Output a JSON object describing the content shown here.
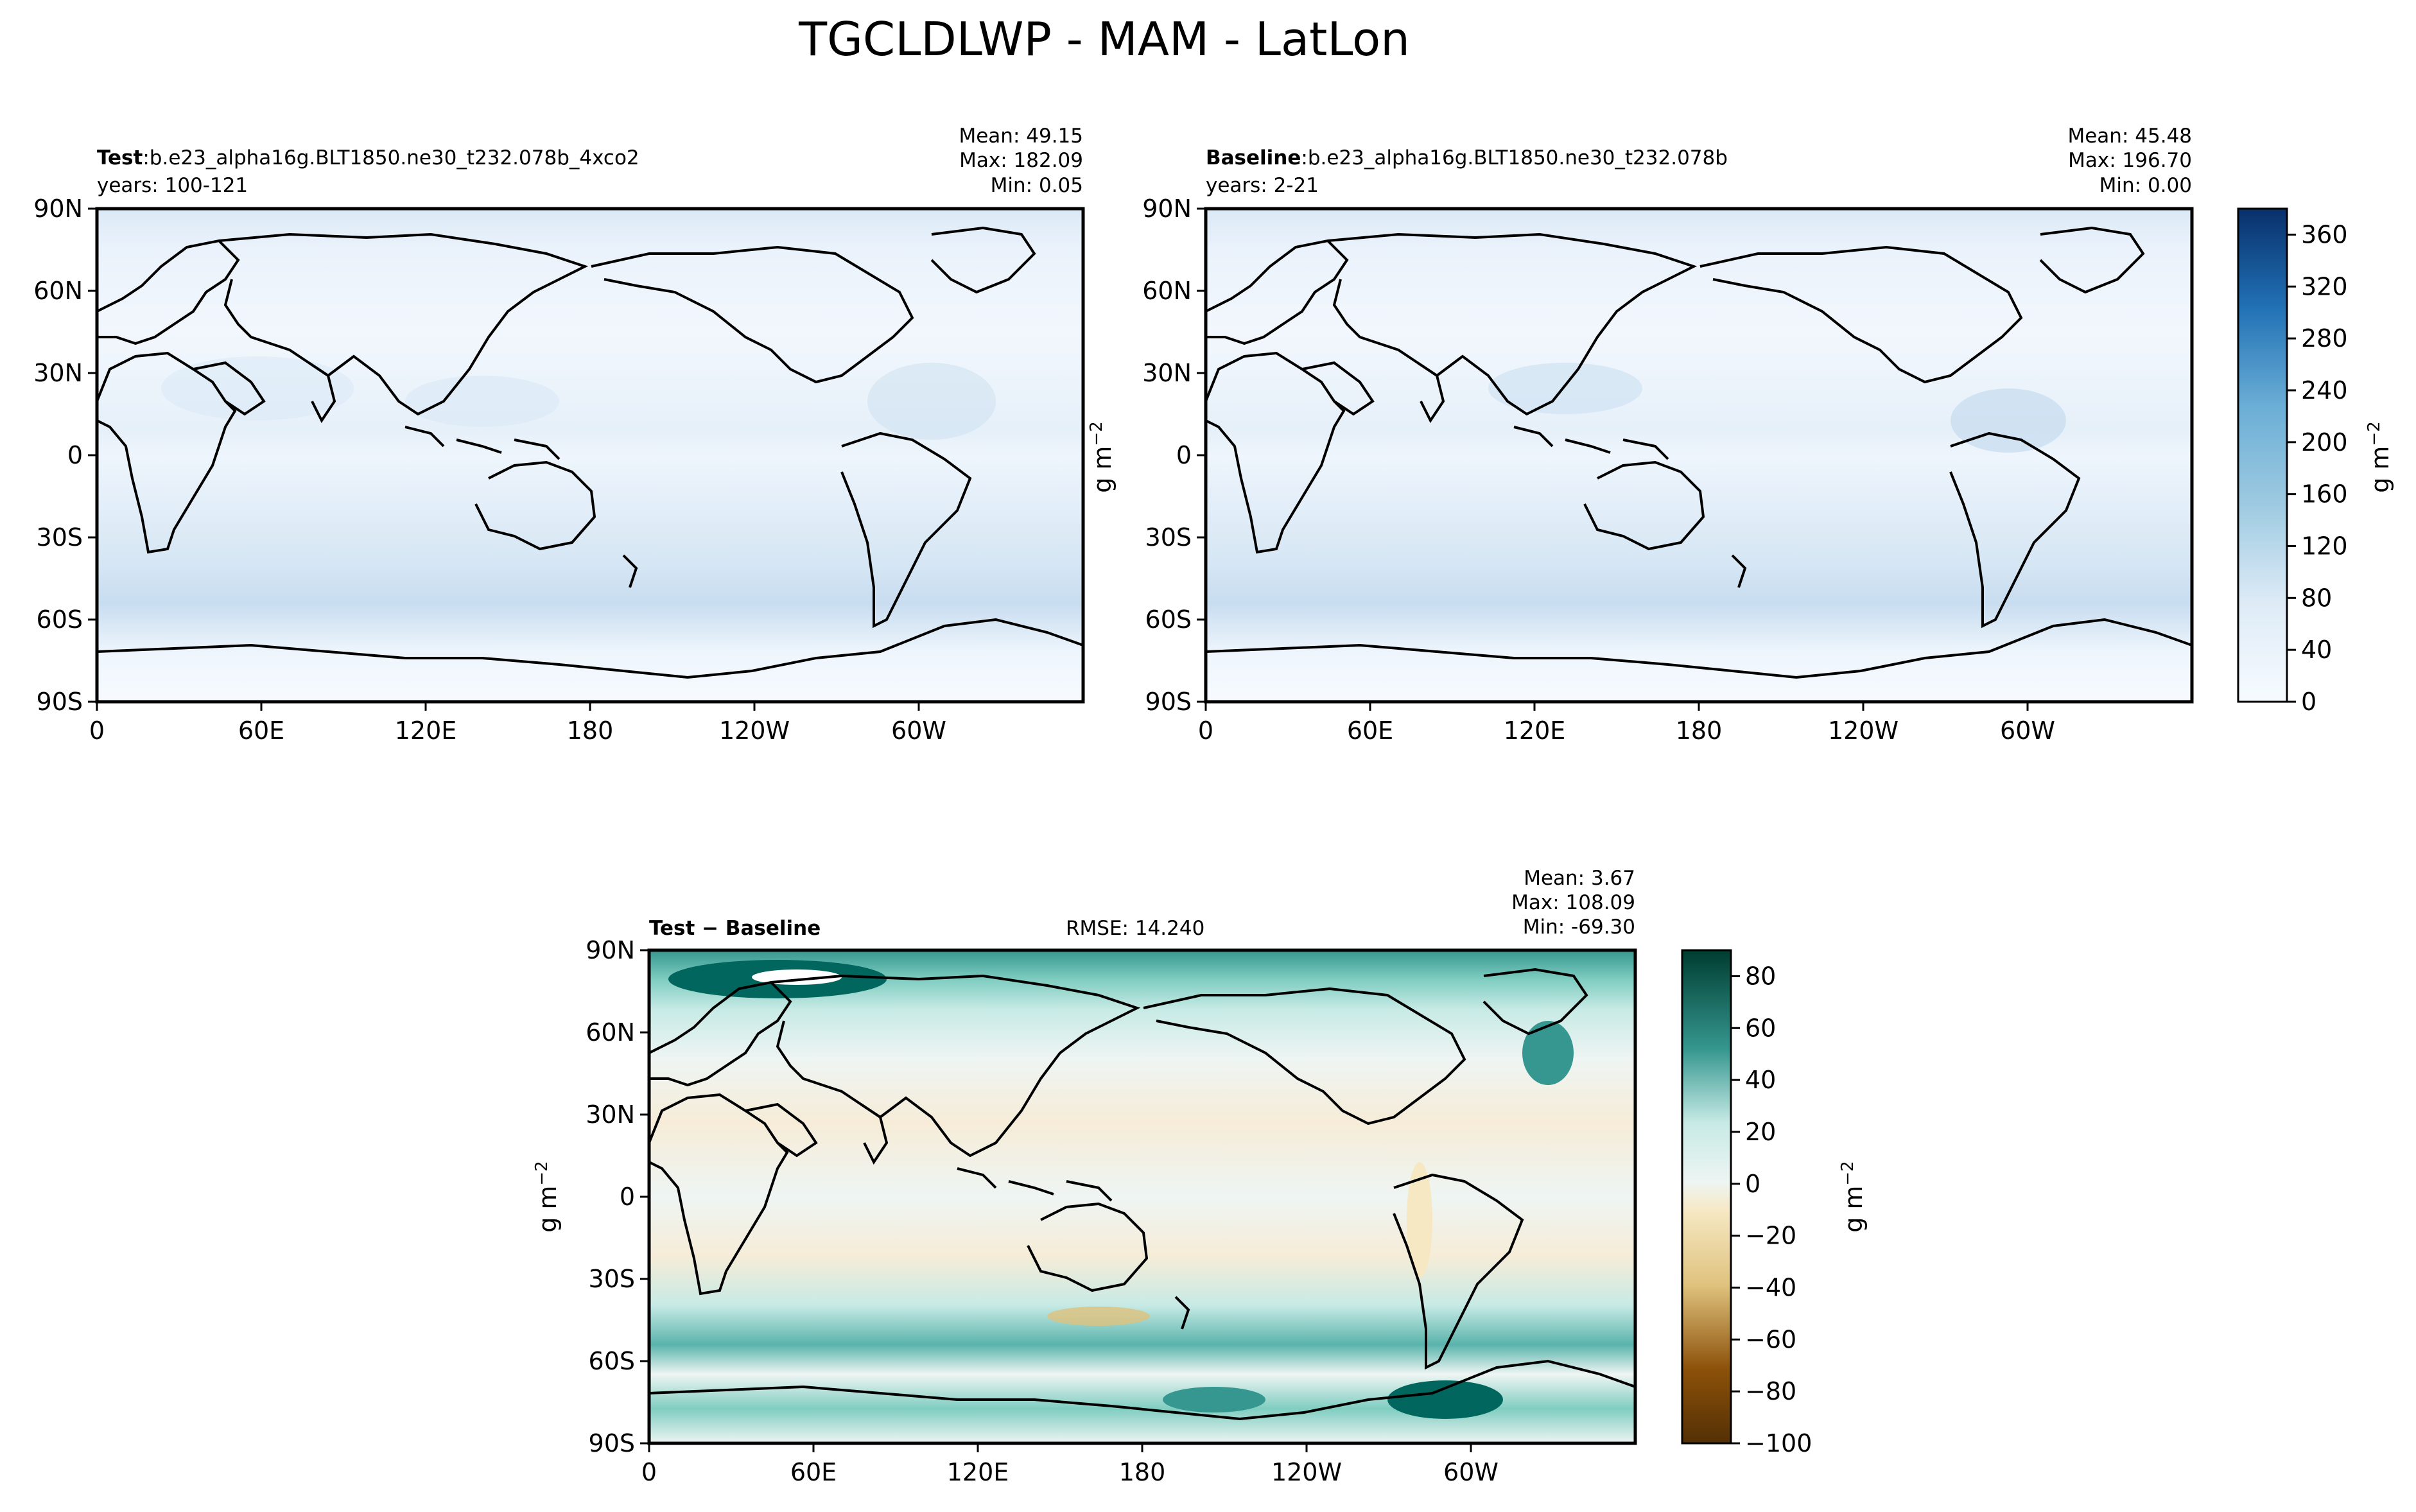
{
  "chart_data": [
    {
      "type": "heatmap",
      "panel": "test",
      "title": "TGCLDLWP - MAM - LatLon",
      "label_bold": "Test",
      "label_sep": ":",
      "case": "b.e23_alpha16g.BLT1850.ne30_t232.078b_4xco2",
      "years": "years: 100-121",
      "stats": [
        "Mean: 49.15",
        "Max: 182.09",
        "Min:  0.05"
      ],
      "lat_ticks": [
        "90N",
        "60N",
        "30N",
        "0",
        "30S",
        "60S",
        "90S"
      ],
      "lon_ticks": [
        "0",
        "60E",
        "120E",
        "180",
        "120W",
        "60W"
      ],
      "xlim": [
        0,
        360
      ],
      "ylim": [
        -90,
        90
      ],
      "colormap": "Blues",
      "colorbar": null
    },
    {
      "type": "heatmap",
      "panel": "baseline",
      "label_bold": "Baseline",
      "label_sep": ":",
      "case": "b.e23_alpha16g.BLT1850.ne30_t232.078b",
      "years": "years: 2-21",
      "stats": [
        "Mean: 45.48",
        "Max: 196.70",
        "Min:  0.00"
      ],
      "lat_ticks": [
        "90N",
        "60N",
        "30N",
        "0",
        "30S",
        "60S",
        "90S"
      ],
      "lon_ticks": [
        "0",
        "60E",
        "120E",
        "180",
        "120W",
        "60W"
      ],
      "xlim": [
        0,
        360
      ],
      "ylim": [
        -90,
        90
      ],
      "colormap": "Blues",
      "colorbar": {
        "label": "g m",
        "exponent": "−2",
        "ticks": [
          "0",
          "40",
          "80",
          "120",
          "160",
          "200",
          "240",
          "280",
          "320",
          "360"
        ],
        "range": [
          0,
          380
        ]
      }
    },
    {
      "type": "heatmap",
      "panel": "difference",
      "label_bold": "Test − Baseline",
      "rmse": "RMSE: 14.240",
      "stats": [
        "Mean:  3.67",
        "Max: 108.09",
        "Min: -69.30"
      ],
      "ylabel": "g m",
      "ylabel_exponent": "−2",
      "lat_ticks": [
        "90N",
        "60N",
        "30N",
        "0",
        "30S",
        "60S",
        "90S"
      ],
      "lon_ticks": [
        "0",
        "60E",
        "120E",
        "180",
        "120W",
        "60W"
      ],
      "xlim": [
        0,
        360
      ],
      "ylim": [
        -90,
        90
      ],
      "colormap": "BrBG",
      "colorbar": {
        "label": "g m",
        "exponent": "−2",
        "ticks": [
          "80",
          "60",
          "40",
          "20",
          "0",
          "−20",
          "−40",
          "−60",
          "−80",
          "−100"
        ],
        "range": [
          -100,
          90
        ]
      }
    }
  ],
  "left_axis_label": "g m",
  "left_axis_exponent": "−2",
  "colors": {
    "blues_low": "#f7fbff",
    "blues_high": "#08306b",
    "brbg_pos": "#01665e",
    "brbg_zero": "#eef5f3",
    "brbg_neg": "#8c510a"
  }
}
